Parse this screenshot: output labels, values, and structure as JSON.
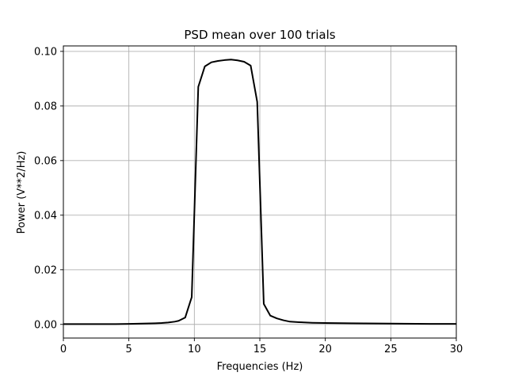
{
  "chart_data": {
    "type": "line",
    "title": "PSD mean over 100 trials",
    "xlabel": "Frequencies (Hz)",
    "ylabel": "Power (V**2/Hz)",
    "xlim": [
      0,
      30
    ],
    "ylim": [
      -0.005,
      0.102
    ],
    "xticks": [
      0,
      5,
      10,
      15,
      20,
      25,
      30
    ],
    "xtick_labels": [
      "0",
      "5",
      "10",
      "15",
      "20",
      "25",
      "30"
    ],
    "yticks": [
      0.0,
      0.02,
      0.04,
      0.06,
      0.08,
      0.1
    ],
    "ytick_labels": [
      "0.00",
      "0.02",
      "0.04",
      "0.06",
      "0.08",
      "0.10"
    ],
    "grid": true,
    "line_color": "#000000",
    "series": [
      {
        "x": [
          0,
          1,
          2,
          3,
          4,
          5,
          6,
          7,
          7.5,
          8,
          8.5,
          8.8,
          9.3,
          9.8,
          10.3,
          10.8,
          11.3,
          11.8,
          12.3,
          12.8,
          13.3,
          13.8,
          14.3,
          14.8,
          15.3,
          15.8,
          16.3,
          16.8,
          17.3,
          18,
          19,
          20,
          22,
          25,
          28,
          30
        ],
        "y": [
          0.0001,
          0.0001,
          0.0001,
          0.0001,
          0.0001,
          0.0002,
          0.0003,
          0.0004,
          0.0005,
          0.0007,
          0.001,
          0.0013,
          0.0025,
          0.01,
          0.087,
          0.0945,
          0.096,
          0.0965,
          0.0968,
          0.097,
          0.0967,
          0.0962,
          0.0948,
          0.0815,
          0.0075,
          0.0032,
          0.0022,
          0.0015,
          0.001,
          0.0008,
          0.0006,
          0.0005,
          0.0004,
          0.0003,
          0.0002,
          0.0002
        ]
      }
    ]
  }
}
